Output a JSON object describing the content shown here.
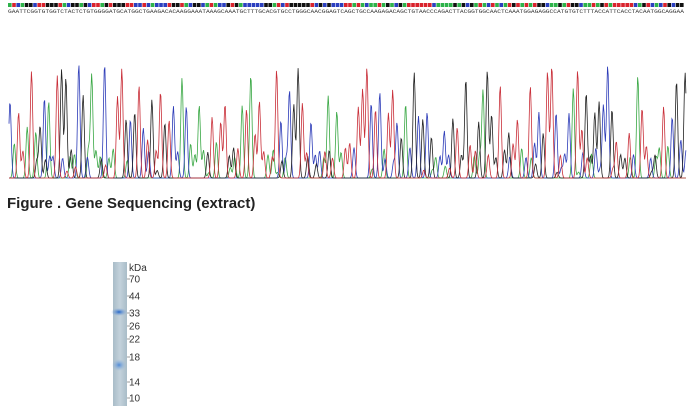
{
  "sequence": "GAATTCGGTGTGGTCTACTCTGTGGGGATGCATGGCTGAAGACACAAGGAAATAAAGCAAATGCTTTGCACGTGCCTGGGCAACGGAGTCAGCTGCCAAGAGACAGCTGTAACCCAGACTTACGGTGGCAACTCAAATGGAGAGGCCATGTGTCTTTACCATTCACCTACAATGGCAGGAA",
  "caption": "Figure . Gene Sequencing (extract)",
  "gel": {
    "unit": "kDa",
    "markers": [
      "70",
      "44",
      "33",
      "26",
      "22",
      "18",
      "14",
      "10"
    ]
  }
}
